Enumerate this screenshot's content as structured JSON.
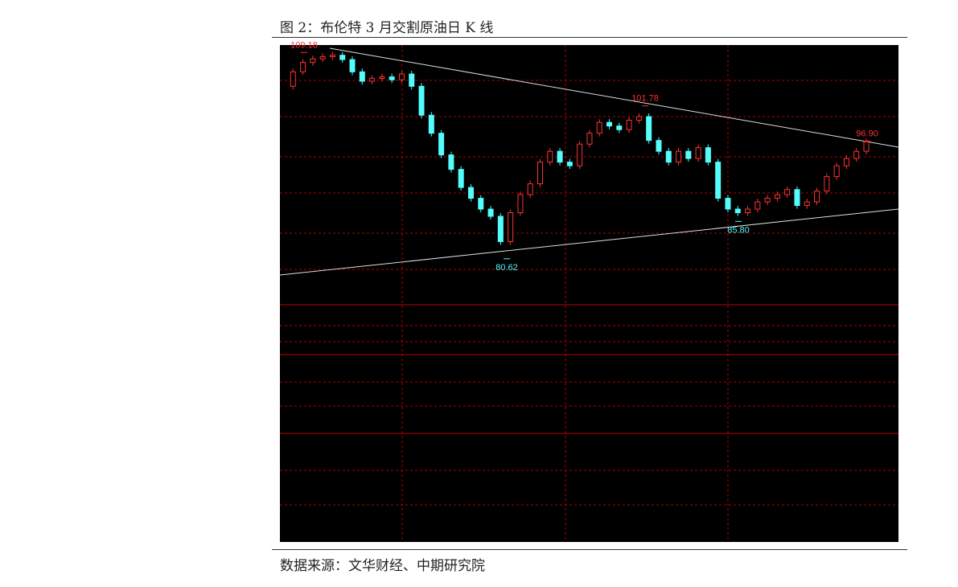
{
  "caption": "图 2：布伦特 3 月交割原油日 K 线",
  "source": "数据来源：文华财经、中期研究院",
  "chart_data": {
    "type": "candlestick",
    "ylim": [
      78.6,
      110.1
    ],
    "close": [
      104.5,
      106.5,
      107.8,
      108.3,
      108.6,
      108.8,
      108.2,
      106.5,
      105.2,
      105.6,
      105.8,
      105.4,
      106.2,
      104.5,
      100.5,
      98,
      95,
      93,
      90.5,
      89,
      87.5,
      86.5,
      83,
      87,
      89.5,
      91,
      94,
      95.5,
      94,
      93.5,
      96.5,
      98,
      99.5,
      99,
      98.5,
      99.8,
      100.3,
      97,
      95.5,
      94,
      95.5,
      94.5,
      96,
      94,
      89,
      87.5,
      87,
      87.5,
      88.5,
      89,
      89.5,
      90.2,
      88,
      88.5,
      90,
      92,
      93.5,
      94.5,
      95.5,
      96.8
    ],
    "up_color": "#ff3232",
    "down_color": "#54fcfc",
    "annotations": [
      {
        "value": 109.18,
        "label": "109.18",
        "kind": "high"
      },
      {
        "value": 101.78,
        "label": "101.78",
        "kind": "high"
      },
      {
        "value": 96.9,
        "label": "96.90",
        "kind": "high"
      },
      {
        "value": 80.62,
        "label": "80.62",
        "kind": "low"
      },
      {
        "value": 85.8,
        "label": "85.80",
        "kind": "low"
      }
    ]
  }
}
